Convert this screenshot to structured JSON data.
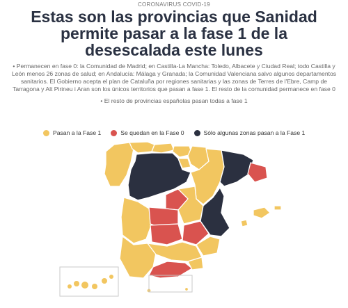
{
  "kicker": "CORONAVIRUS COVID-19",
  "headline": "Estas son las provincias que Sanidad permite pasar a la fase 1 de la desescalada este lunes",
  "body_text": "• Permanecen en fase 0: la Comunidad de Madrid; en Castilla-La Mancha: Toledo, Albacete y Ciudad Real; todo Castilla y León menos 26 zonas de salud; en Andalucía: Málaga y Granada; la Comunidad Valenciana salvo algunos departamentos sanitarios. El Gobierno acepta el plan de Cataluña por regiones sanitarias y las zonas de Terres de l'Ebre, Camp de Tarragona y Alt Pirineu i Aran son los únicos territorios que pasan a fase 1. El resto de la comunidad permanece en fase 0",
  "note": "• El resto de provincias españolas pasan todas a fase 1",
  "legend": [
    {
      "label": "Pasan a la Fase 1",
      "color": "#f2c660",
      "color_name": "yellow"
    },
    {
      "label": "Se quedan en la Fase 0",
      "color": "#d9534f",
      "color_name": "red"
    },
    {
      "label": "Sólo algunas zonas pasan a la Fase 1",
      "color": "#2b3040",
      "color_name": "dark-navy"
    }
  ],
  "map": {
    "type": "choropleth",
    "region": "Spain provinces",
    "insets": [
      "Canary Islands",
      "Balearic Islands"
    ]
  }
}
